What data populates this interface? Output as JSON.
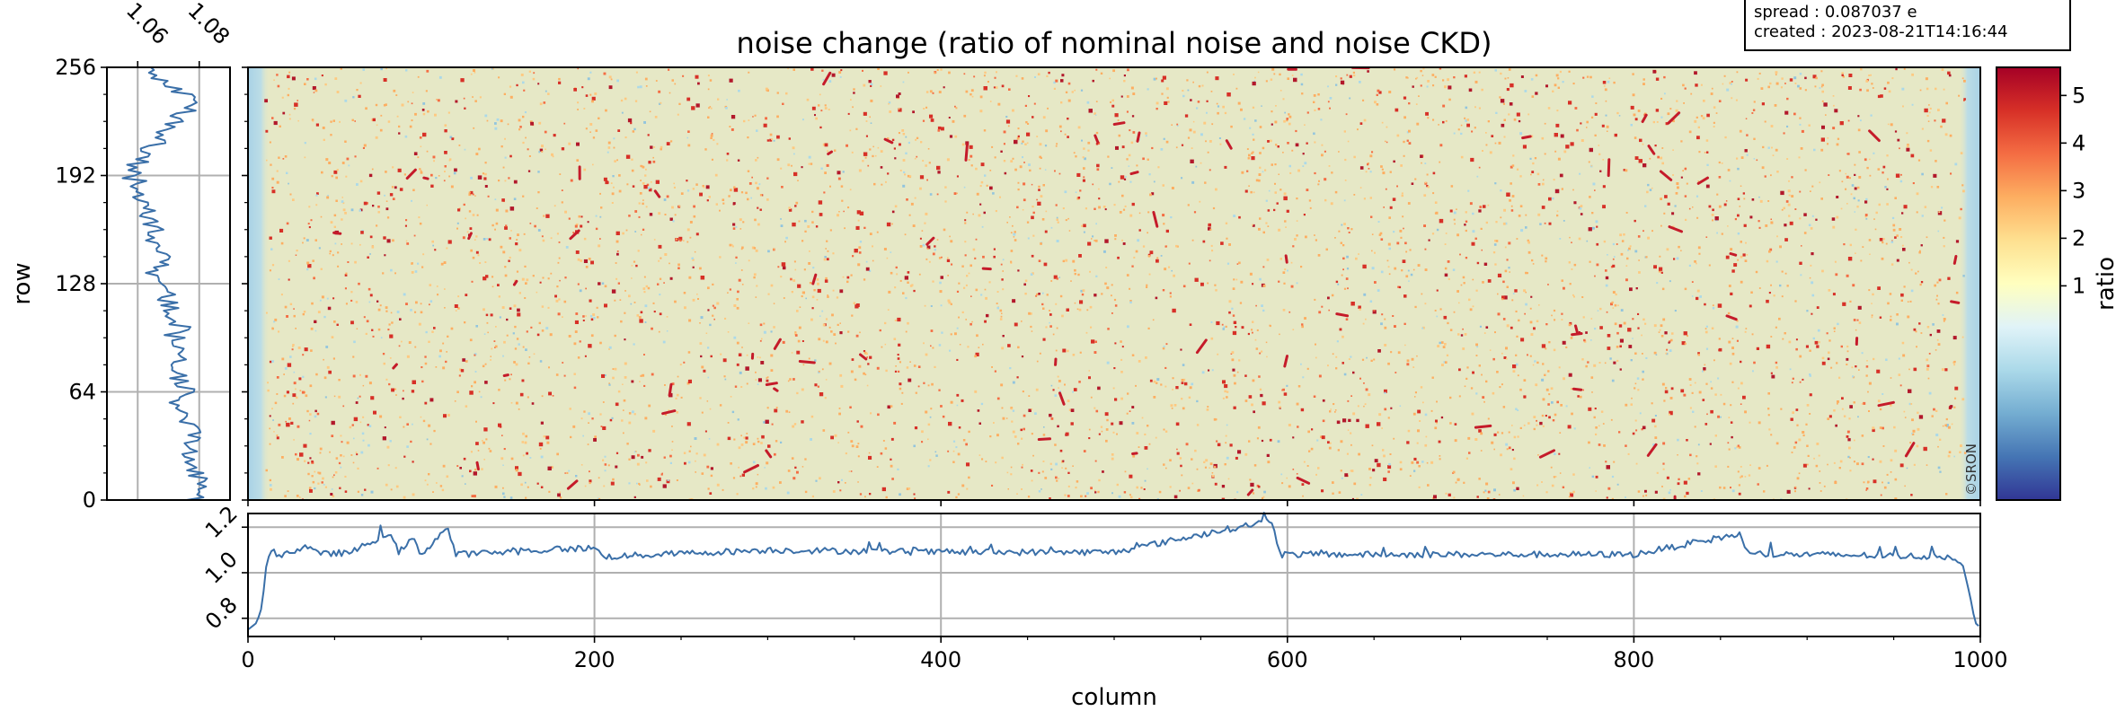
{
  "chart_data": [
    {
      "type": "heatmap",
      "title": "noise change (ratio of nominal noise and noise CKD)",
      "xlabel": "column",
      "ylabel": "row",
      "xlim": [
        0,
        1000
      ],
      "ylim": [
        0,
        256
      ],
      "xticks": [
        "0",
        "200",
        "400",
        "600",
        "800",
        "1000"
      ],
      "yticks": [
        "0",
        "64",
        "128",
        "192",
        "256"
      ],
      "colorbar": {
        "label": "ratio",
        "ticks": [
          "1",
          "2",
          "3",
          "4",
          "5"
        ],
        "colormap": "RdYlBu_r",
        "colors": [
          "#313695",
          "#4575b4",
          "#74add1",
          "#abd9e9",
          "#e0f3f8",
          "#ffffbf",
          "#fee090",
          "#fdae61",
          "#f46d43",
          "#d73027",
          "#a50026"
        ]
      },
      "background_color": "#e6e8c6",
      "watermark": "©SRON"
    },
    {
      "type": "line",
      "role": "row-profile",
      "ylabel": "row",
      "xlim": [
        1.05,
        1.09
      ],
      "ylim": [
        0,
        256
      ],
      "xticks": [
        "1.06",
        "1.08"
      ],
      "yticks": [
        "0",
        "64",
        "128",
        "192",
        "256"
      ],
      "series_color": "#3a6fa8",
      "points": [
        [
          1.078,
          0
        ],
        [
          1.081,
          8
        ],
        [
          1.08,
          16
        ],
        [
          1.077,
          24
        ],
        [
          1.079,
          32
        ],
        [
          1.078,
          40
        ],
        [
          1.076,
          48
        ],
        [
          1.073,
          56
        ],
        [
          1.077,
          64
        ],
        [
          1.072,
          72
        ],
        [
          1.074,
          80
        ],
        [
          1.076,
          88
        ],
        [
          1.072,
          96
        ],
        [
          1.074,
          104
        ],
        [
          1.071,
          112
        ],
        [
          1.07,
          120
        ],
        [
          1.067,
          128
        ],
        [
          1.066,
          136
        ],
        [
          1.068,
          144
        ],
        [
          1.064,
          152
        ],
        [
          1.065,
          160
        ],
        [
          1.062,
          168
        ],
        [
          1.063,
          176
        ],
        [
          1.061,
          184
        ],
        [
          1.058,
          192
        ],
        [
          1.06,
          200
        ],
        [
          1.064,
          208
        ],
        [
          1.069,
          216
        ],
        [
          1.073,
          224
        ],
        [
          1.076,
          232
        ],
        [
          1.075,
          240
        ],
        [
          1.068,
          248
        ],
        [
          1.065,
          256
        ]
      ]
    },
    {
      "type": "line",
      "role": "column-profile",
      "xlabel": "column",
      "xlim": [
        0,
        1000
      ],
      "ylim": [
        0.72,
        1.26
      ],
      "xticks": [
        "0",
        "200",
        "400",
        "600",
        "800",
        "1000"
      ],
      "yticks": [
        "0.8",
        "1.0",
        "1.2"
      ],
      "series_color": "#3a6fa8",
      "points": [
        [
          0,
          0.75
        ],
        [
          5,
          0.78
        ],
        [
          8,
          0.85
        ],
        [
          11,
          1.06
        ],
        [
          14,
          1.09
        ],
        [
          20,
          1.08
        ],
        [
          36,
          1.12
        ],
        [
          40,
          1.08
        ],
        [
          60,
          1.09
        ],
        [
          82,
          1.18
        ],
        [
          86,
          1.08
        ],
        [
          95,
          1.15
        ],
        [
          100,
          1.08
        ],
        [
          115,
          1.2
        ],
        [
          120,
          1.08
        ],
        [
          200,
          1.11
        ],
        [
          205,
          1.07
        ],
        [
          300,
          1.1
        ],
        [
          400,
          1.09
        ],
        [
          500,
          1.09
        ],
        [
          591,
          1.23
        ],
        [
          596,
          1.08
        ],
        [
          700,
          1.08
        ],
        [
          800,
          1.08
        ],
        [
          861,
          1.17
        ],
        [
          866,
          1.08
        ],
        [
          900,
          1.08
        ],
        [
          985,
          1.07
        ],
        [
          990,
          1.03
        ],
        [
          994,
          0.9
        ],
        [
          997,
          0.78
        ],
        [
          1000,
          0.76
        ]
      ]
    }
  ],
  "info_box": {
    "spread": "spread : 0.087037 e",
    "created": "created : 2023-08-21T14:16:44"
  }
}
